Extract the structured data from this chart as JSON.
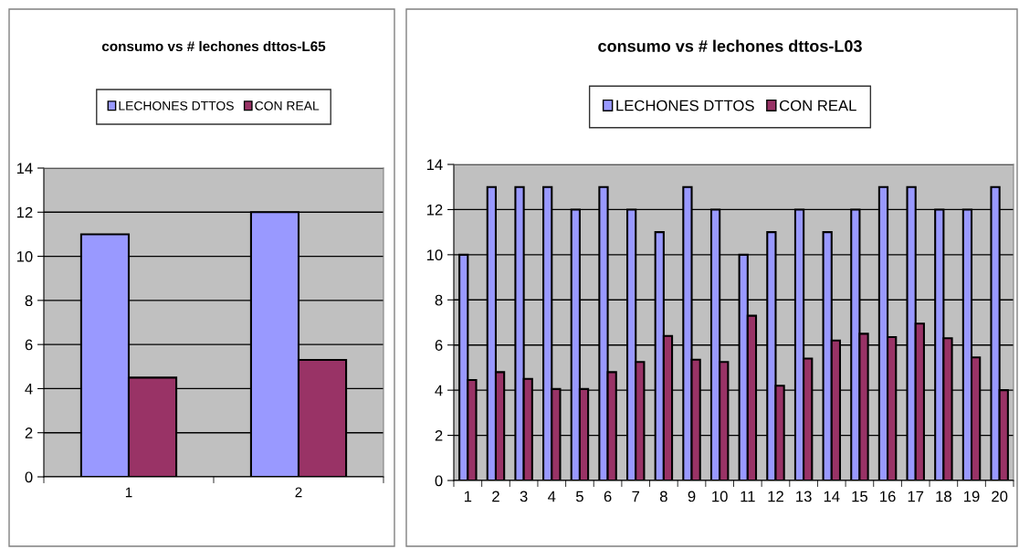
{
  "chart_data": [
    {
      "type": "bar",
      "title": "consumo vs # lechones dttos-L65",
      "categories": [
        "1",
        "2"
      ],
      "series": [
        {
          "name": "LECHONES DTTOS",
          "color": "#9999ff",
          "values": [
            11,
            12
          ]
        },
        {
          "name": "CON REAL",
          "color": "#993366",
          "values": [
            4.5,
            5.3
          ]
        }
      ],
      "ylim": [
        0,
        14
      ],
      "yticks": [
        0,
        2,
        4,
        6,
        8,
        10,
        12,
        14
      ],
      "grid": "y",
      "legend": "top"
    },
    {
      "type": "bar",
      "title": "consumo vs # lechones dttos-L03",
      "categories": [
        "1",
        "2",
        "3",
        "4",
        "5",
        "6",
        "7",
        "8",
        "9",
        "10",
        "11",
        "12",
        "13",
        "14",
        "15",
        "16",
        "17",
        "18",
        "19",
        "20"
      ],
      "series": [
        {
          "name": "LECHONES DTTOS",
          "color": "#9999ff",
          "values": [
            10,
            13,
            13,
            13,
            12,
            13,
            12,
            11,
            13,
            12,
            10,
            11,
            12,
            11,
            12,
            13,
            13,
            12,
            12,
            13
          ]
        },
        {
          "name": "CON REAL",
          "color": "#993366",
          "values": [
            4.45,
            4.8,
            4.5,
            4.05,
            4.05,
            4.8,
            5.25,
            6.4,
            5.35,
            5.25,
            7.3,
            4.2,
            5.4,
            6.2,
            6.5,
            6.35,
            6.95,
            6.3,
            5.45,
            4.0
          ]
        }
      ],
      "ylim": [
        0,
        14
      ],
      "yticks": [
        0,
        2,
        4,
        6,
        8,
        10,
        12,
        14
      ],
      "grid": "y",
      "legend": "top"
    }
  ]
}
